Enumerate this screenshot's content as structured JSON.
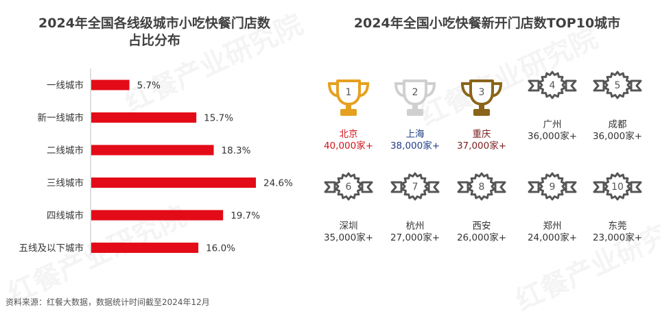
{
  "watermark_text": "红餐产业研究院",
  "left_chart": {
    "title_line1": "2024年全国各线级城市小吃快餐门店数",
    "title_line2": "占比分布"
  },
  "right_chart": {
    "title": "2024年全国小吃快餐新开门店数TOP10城市"
  },
  "source": "资料来源：红餐大数据，数据统计时间截至2024年12月",
  "chart_data": [
    {
      "type": "bar",
      "orientation": "horizontal",
      "title": "2024年全国各线级城市小吃快餐门店数占比分布",
      "categories": [
        "一线城市",
        "新一线城市",
        "二线城市",
        "三线城市",
        "四线城市",
        "五线及以下城市"
      ],
      "values": [
        5.7,
        15.7,
        18.3,
        24.6,
        19.7,
        16.0
      ],
      "value_labels": [
        "5.7%",
        "15.7%",
        "18.3%",
        "24.6%",
        "19.7%",
        "16.0%"
      ],
      "unit": "%",
      "color": "#e30b17",
      "xlim": [
        0,
        24.6
      ],
      "grid": false
    },
    {
      "type": "table",
      "title": "2024年全国小吃快餐新开门店数TOP10城市",
      "ranks": [
        {
          "rank": "1",
          "city": "北京",
          "count": "40,000家+",
          "badge": "trophy",
          "color": "#e6a020",
          "text_color": "#d0121b"
        },
        {
          "rank": "2",
          "city": "上海",
          "count": "38,000家+",
          "badge": "trophy",
          "color": "#cfcfcf",
          "text_color": "#1f3c88"
        },
        {
          "rank": "3",
          "city": "重庆",
          "count": "37,000家+",
          "badge": "trophy",
          "color": "#8a6418",
          "text_color": "#7a1e1e"
        },
        {
          "rank": "4",
          "city": "广州",
          "count": "36,000家+",
          "badge": "star",
          "color": "#555555",
          "text_color": "#333333"
        },
        {
          "rank": "5",
          "city": "成都",
          "count": "36,000家+",
          "badge": "star",
          "color": "#555555",
          "text_color": "#333333"
        },
        {
          "rank": "6",
          "city": "深圳",
          "count": "35,000家+",
          "badge": "star",
          "color": "#555555",
          "text_color": "#333333"
        },
        {
          "rank": "7",
          "city": "杭州",
          "count": "27,000家+",
          "badge": "star",
          "color": "#555555",
          "text_color": "#333333"
        },
        {
          "rank": "8",
          "city": "西安",
          "count": "26,000家+",
          "badge": "star",
          "color": "#555555",
          "text_color": "#333333"
        },
        {
          "rank": "9",
          "city": "郑州",
          "count": "24,000家+",
          "badge": "star",
          "color": "#555555",
          "text_color": "#333333"
        },
        {
          "rank": "10",
          "city": "东莞",
          "count": "23,000家+",
          "badge": "star",
          "color": "#555555",
          "text_color": "#333333"
        }
      ]
    }
  ]
}
